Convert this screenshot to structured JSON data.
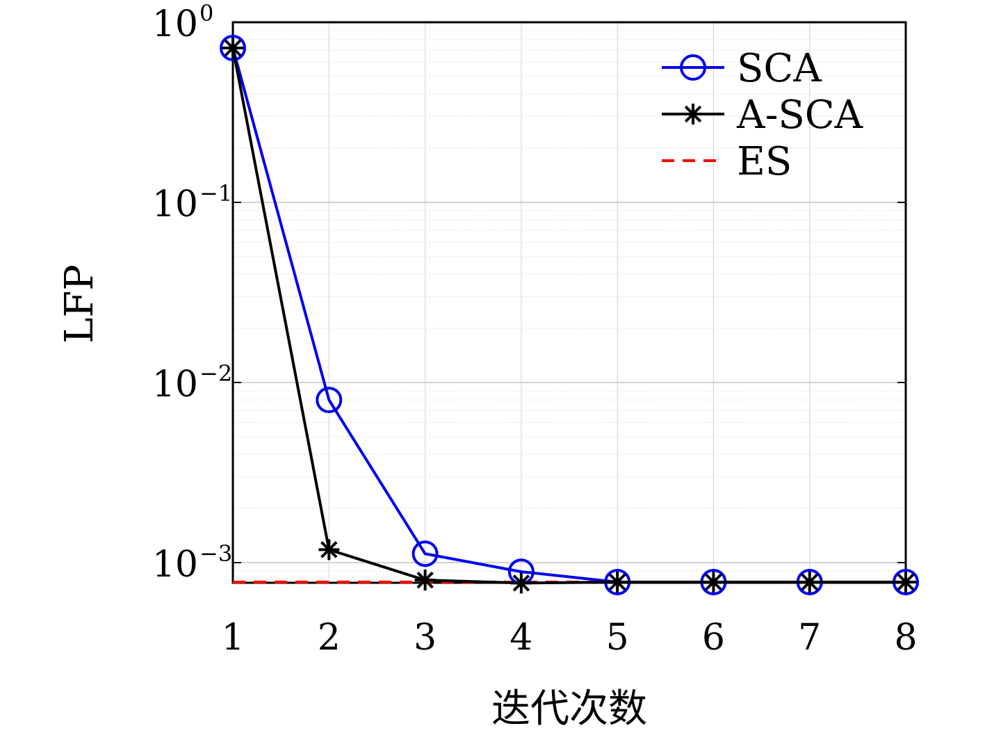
{
  "chart_data": {
    "type": "line",
    "title": "",
    "xlabel": "迭代次数",
    "ylabel": "LFP",
    "x": [
      1,
      2,
      3,
      4,
      5,
      6,
      7,
      8
    ],
    "xlim": [
      1,
      8
    ],
    "ylim": [
      0.00078,
      1
    ],
    "yscale": "log",
    "x_tick_labels": [
      "1",
      "2",
      "3",
      "4",
      "5",
      "6",
      "7",
      "8"
    ],
    "y_ticks": [
      {
        "value": 1,
        "base": "10",
        "exp": "0"
      },
      {
        "value": 0.1,
        "base": "10",
        "exp": "−1"
      },
      {
        "value": 0.01,
        "base": "10",
        "exp": "−2"
      },
      {
        "value": 0.001,
        "base": "10",
        "exp": "−3"
      }
    ],
    "grid": true,
    "legend_position": "top-right",
    "series": [
      {
        "name": "SCA",
        "color": "#0000ee",
        "marker": "circle",
        "line": "solid",
        "values": [
          0.72,
          0.008,
          0.00112,
          0.00089,
          0.00078,
          0.00078,
          0.00078,
          0.00078
        ]
      },
      {
        "name": "A-SCA",
        "color": "#000000",
        "marker": "asterisk",
        "line": "solid",
        "values": [
          0.72,
          0.00118,
          0.0008,
          0.00077,
          0.00078,
          0.00078,
          0.00078,
          0.00078
        ]
      },
      {
        "name": "ES",
        "color": "#ff0000",
        "marker": "none",
        "line": "dashed",
        "values": [
          0.00078,
          0.00078,
          0.00078,
          0.00078,
          0.00078,
          0.00078,
          0.00078,
          0.00078
        ]
      }
    ]
  }
}
